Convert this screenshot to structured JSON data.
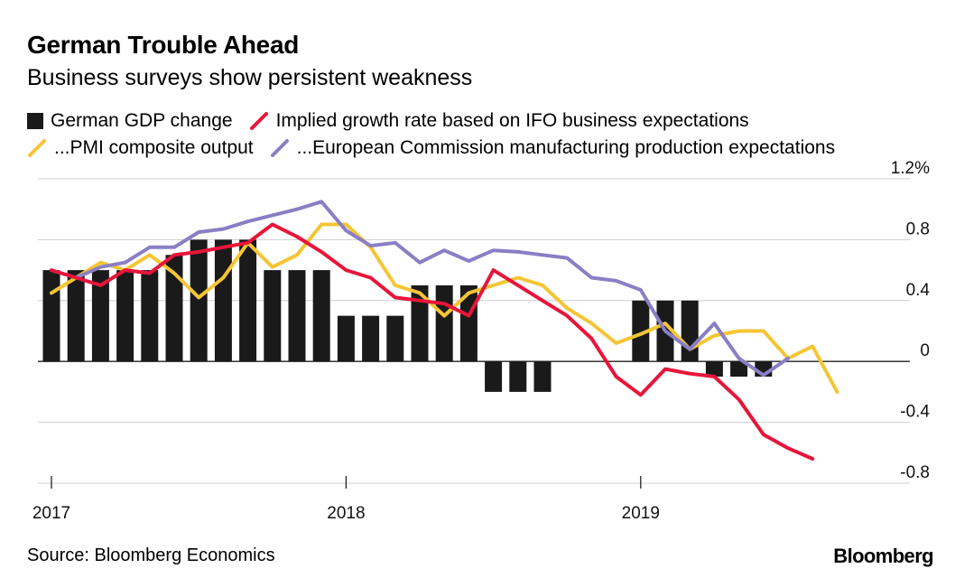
{
  "title": "German Trouble Ahead",
  "subtitle": "Business surveys show persistent weakness",
  "legend": [
    {
      "label": "German GDP change",
      "color": "#1a1a1a",
      "kind": "box"
    },
    {
      "label": "Implied growth rate based on IFO business expectations",
      "color": "#e8153a",
      "kind": "line"
    },
    {
      "label": "...PMI composite output",
      "color": "#f5c533",
      "kind": "line"
    },
    {
      "label": "...European Commission manufacturing production expectations",
      "color": "#8a7fc4",
      "kind": "line"
    }
  ],
  "source": "Source: Bloomberg Economics",
  "brand": "Bloomberg",
  "chart_data": {
    "type": "bar+line",
    "x_unit": "month",
    "x_start": "2017-01",
    "x_tick_labels": [
      "2017",
      "2018",
      "2019"
    ],
    "y_tick_labels": [
      "1.2%",
      "0.8",
      "0.4",
      "0",
      "-0.4",
      "-0.8"
    ],
    "y_ticks": [
      1.2,
      0.8,
      0.4,
      0,
      -0.4,
      -0.8
    ],
    "ylim": [
      -0.8,
      1.2
    ],
    "grid": true,
    "y_axis_position": "right",
    "legend_position": "top",
    "series": [
      {
        "name": "German GDP change",
        "type": "bar",
        "color": "#1a1a1a",
        "values": [
          0.6,
          0.6,
          0.6,
          0.6,
          0.6,
          0.7,
          0.8,
          0.8,
          0.8,
          0.6,
          0.6,
          0.6,
          0.3,
          0.3,
          0.3,
          0.5,
          0.5,
          0.5,
          -0.2,
          -0.2,
          -0.2,
          0,
          0,
          0,
          0.4,
          0.4,
          0.4,
          -0.1,
          -0.1,
          -0.1
        ]
      },
      {
        "name": "Implied growth rate based on IFO business expectations",
        "type": "line",
        "color": "#e8153a",
        "values": [
          0.6,
          0.55,
          0.5,
          0.6,
          0.58,
          0.7,
          0.72,
          0.75,
          0.78,
          0.9,
          0.82,
          0.72,
          0.6,
          0.55,
          0.42,
          0.4,
          0.38,
          0.3,
          0.6,
          0.5,
          0.4,
          0.3,
          0.15,
          -0.1,
          -0.22,
          -0.05,
          -0.08,
          -0.1,
          -0.25,
          -0.48,
          -0.57,
          -0.64
        ]
      },
      {
        "name": "...PMI composite output",
        "type": "line",
        "color": "#f5c533",
        "values": [
          0.45,
          0.55,
          0.65,
          0.6,
          0.7,
          0.58,
          0.42,
          0.55,
          0.78,
          0.62,
          0.7,
          0.9,
          0.9,
          0.75,
          0.5,
          0.45,
          0.3,
          0.45,
          0.5,
          0.55,
          0.5,
          0.35,
          0.25,
          0.12,
          0.18,
          0.25,
          0.08,
          0.17,
          0.2,
          0.2,
          0.02,
          0.1,
          -0.2
        ]
      },
      {
        "name": "...European Commission manufacturing production expectations",
        "type": "line",
        "color": "#8a7fc4",
        "values": [
          0.6,
          0.55,
          0.62,
          0.65,
          0.75,
          0.75,
          0.85,
          0.87,
          0.92,
          0.96,
          1.0,
          1.05,
          0.86,
          0.76,
          0.78,
          0.65,
          0.73,
          0.66,
          0.73,
          0.72,
          0.7,
          0.68,
          0.55,
          0.53,
          0.47,
          0.2,
          0.08,
          0.25,
          0.02,
          -0.09,
          0.02
        ]
      }
    ]
  }
}
